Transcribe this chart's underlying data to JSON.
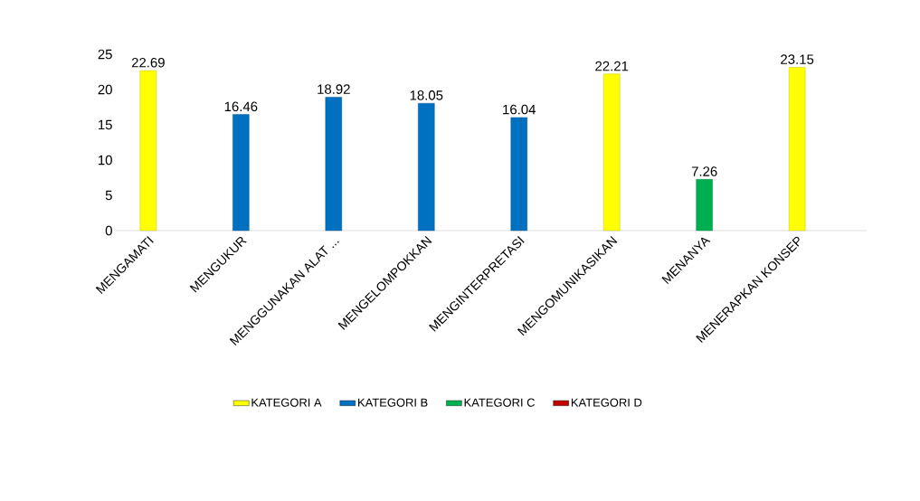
{
  "chart_data": {
    "type": "bar",
    "categories": [
      "MENGAMATI",
      "MENGUKUR",
      "MENGGUNAKAN ALAT ...",
      "MENGELOMPOKKAN",
      "MENGINTERPRETASI",
      "MENGOMUNIKASIKAN",
      "MENANYA",
      "MENERAPKAN KONSEP"
    ],
    "series": [
      {
        "name": "KATEGORI A",
        "color": "#ffff00",
        "values": [
          22.69,
          null,
          null,
          null,
          null,
          22.21,
          null,
          23.15
        ]
      },
      {
        "name": "KATEGORI B",
        "color": "#0070c0",
        "values": [
          null,
          16.46,
          18.92,
          18.05,
          16.04,
          null,
          null,
          null
        ]
      },
      {
        "name": "KATEGORI C",
        "color": "#00b050",
        "values": [
          null,
          null,
          null,
          null,
          null,
          null,
          7.26,
          null
        ]
      },
      {
        "name": "KATEGORI D",
        "color": "#c00000",
        "values": [
          null,
          null,
          null,
          null,
          null,
          null,
          null,
          null
        ]
      }
    ],
    "ylim": [
      0,
      25
    ],
    "yticks": [
      0,
      5,
      10,
      15,
      20,
      25
    ],
    "data_labels": true,
    "legend": "bottom"
  }
}
